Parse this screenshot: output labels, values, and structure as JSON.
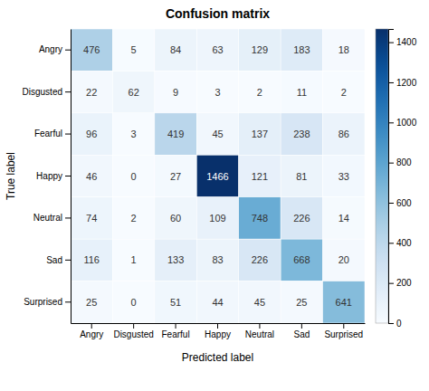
{
  "chart_data": {
    "type": "heatmap",
    "title": "Confusion matrix",
    "xlabel": "Predicted label",
    "ylabel": "True label",
    "categories": [
      "Angry",
      "Disgusted",
      "Fearful",
      "Happy",
      "Neutral",
      "Sad",
      "Surprised"
    ],
    "values": [
      [
        476,
        5,
        84,
        63,
        129,
        183,
        18
      ],
      [
        22,
        62,
        9,
        3,
        2,
        11,
        2
      ],
      [
        96,
        3,
        419,
        45,
        137,
        238,
        86
      ],
      [
        46,
        0,
        27,
        1466,
        121,
        81,
        33
      ],
      [
        74,
        2,
        60,
        109,
        748,
        226,
        14
      ],
      [
        116,
        1,
        133,
        83,
        226,
        668,
        20
      ],
      [
        25,
        0,
        51,
        44,
        45,
        25,
        641
      ]
    ],
    "colorbar_range": [
      0,
      1466
    ],
    "colorbar_ticks": [
      0,
      200,
      400,
      600,
      800,
      1000,
      1200,
      1400
    ],
    "data_labels": true
  }
}
